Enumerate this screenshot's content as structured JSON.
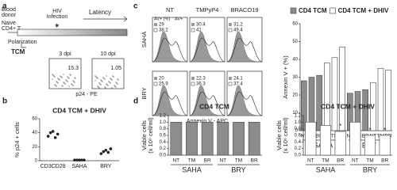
{
  "panel_letters": [
    "a",
    "b",
    "c",
    "d"
  ],
  "diagram": {
    "donor": [
      "Blood",
      "donor"
    ],
    "cell": [
      "Naive",
      "CD4+ T"
    ],
    "infection": [
      "HIV",
      "Infection"
    ],
    "polarization": "Polarization",
    "latency": "Latency",
    "subset": "TCM",
    "timepoints": [
      "3 dpi",
      "10 dpi"
    ],
    "percentages": [
      "15.3",
      "1.05"
    ],
    "axis": "p24 - PE"
  },
  "flow": {
    "columns": [
      "NT",
      "TMPyP4",
      "BRACO19"
    ],
    "rows": [
      "SAHA",
      "BRY"
    ],
    "legend": [
      "AV+ (%)",
      "AV+"
    ],
    "xlabel": "Annexin V - APC",
    "values": [
      [
        [
          "29",
          "38.2"
        ],
        [
          "30.4",
          "41"
        ],
        [
          "31.2",
          "49.4"
        ]
      ],
      [
        [
          "20",
          "25.9"
        ],
        [
          "22.3",
          "36.3"
        ],
        [
          "24.1",
          "37.4"
        ]
      ]
    ]
  },
  "chart_data": [
    {
      "type": "dot",
      "title": "CD4 TCM + DHIV",
      "ylabel": [
        "% p24 + cells"
      ],
      "categories": [
        "CD3CD28",
        "SAHA",
        "BRY"
      ],
      "values": [
        [
          35,
          40,
          42,
          33,
          38
        ],
        [
          1,
          1,
          1,
          1,
          1
        ],
        [
          10,
          13,
          15,
          12,
          17
        ]
      ],
      "color": "#222",
      "ylim": [
        0,
        60
      ],
      "yticks": [
        0,
        20,
        40,
        60
      ]
    },
    {
      "type": "bar",
      "ylabel": [
        "Annexin V + (%)"
      ],
      "legend": true,
      "categories": [
        "NT",
        "TM",
        "BR",
        "NT",
        "TM",
        "BR",
        "NT",
        "TM",
        "BR",
        "NT",
        "TM",
        "BR"
      ],
      "group_labels": [
        "SAHA",
        "BRY"
      ],
      "series": [
        {
          "name": "CD4 TCM",
          "color": "#8c8c8c",
          "values": [
            28,
            30,
            31,
            null,
            null,
            null,
            21,
            22,
            23,
            null,
            null,
            null
          ]
        },
        {
          "name": "CD4 TCM + DHIV",
          "color": "#ffffff",
          "values": [
            null,
            null,
            null,
            38,
            41,
            47,
            null,
            null,
            null,
            27,
            35,
            34
          ]
        }
      ],
      "ylim": [
        0,
        60
      ],
      "yticks": [
        0,
        10,
        20,
        30,
        40,
        50,
        60
      ]
    },
    {
      "type": "bar",
      "title": "CD4 TCM",
      "ylabel": [
        "Viable cells",
        "(x 10⁶ cell/ml)"
      ],
      "categories": [
        "NT",
        "TM",
        "BR",
        "NT",
        "TM",
        "BR"
      ],
      "group_labels": [
        "SAHA",
        "BRY"
      ],
      "series": [
        {
          "color": "#8c8c8c",
          "values": [
            1.0,
            1.0,
            1.0,
            1.0,
            1.0,
            1.0
          ]
        }
      ],
      "ylim": [
        0,
        1.2
      ],
      "yticks": [
        {
          "value": 0,
          "label": "0.0"
        },
        0.2,
        0.4,
        0.6,
        0.8,
        {
          "value": 1,
          "label": "1.0"
        },
        1.2
      ]
    },
    {
      "type": "bar",
      "title": "CD4 TCM + DHIV",
      "ylabel": [
        "Viable cells",
        "(x 10⁶ cell/ml)"
      ],
      "categories": [
        "NT",
        "TM",
        "BR",
        "NT",
        "TM",
        "BR"
      ],
      "group_labels": [
        "SAHA",
        "BRY"
      ],
      "series": [
        {
          "color": "#ffffff",
          "values": [
            1.0,
            0.9,
            0.72,
            1.0,
            0.6,
            0.6
          ]
        }
      ],
      "significance": [
        null,
        null,
        "*",
        null,
        "*",
        "*"
      ],
      "ylim": [
        0,
        1.2
      ],
      "yticks": [
        {
          "value": 0,
          "label": "0.0"
        },
        0.2,
        0.4,
        0.6,
        0.8,
        {
          "value": 1,
          "label": "1.0"
        },
        1.2
      ]
    }
  ]
}
